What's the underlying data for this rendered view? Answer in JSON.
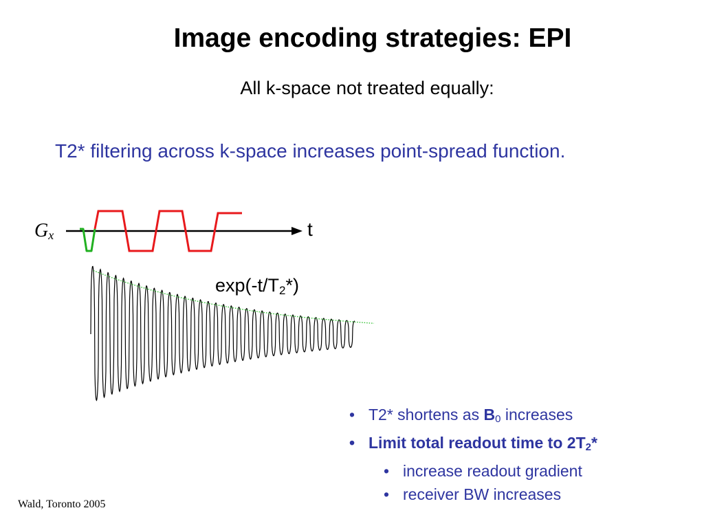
{
  "slide": {
    "title": "Image encoding strategies: EPI",
    "subtitle": "All k-space not treated equally:",
    "lead": "T2* filtering across k-space increases point-spread function."
  },
  "diagram": {
    "gradient_label_base": "G",
    "gradient_label_sub": "x",
    "time_label": "t",
    "decay_label_pre": "exp(-t/T",
    "decay_label_sub": "2",
    "decay_label_post": "*)",
    "colors": {
      "readout": "#e8191c",
      "prephaser": "#20b020",
      "envelope": "#2fbf2f",
      "signal": "#000000",
      "axis": "#000000"
    }
  },
  "bullets": [
    {
      "pre": "T2* shortens as ",
      "bold": "B",
      "sub": "0",
      "post": " increases"
    },
    {
      "pre": "Limit total readout time to 2T",
      "sub": "2",
      "post": "*"
    },
    {
      "text": "increase readout gradient"
    },
    {
      "text": "receiver BW increases"
    }
  ],
  "bullet_mark": "•",
  "footer": "Wald, Toronto 2005"
}
